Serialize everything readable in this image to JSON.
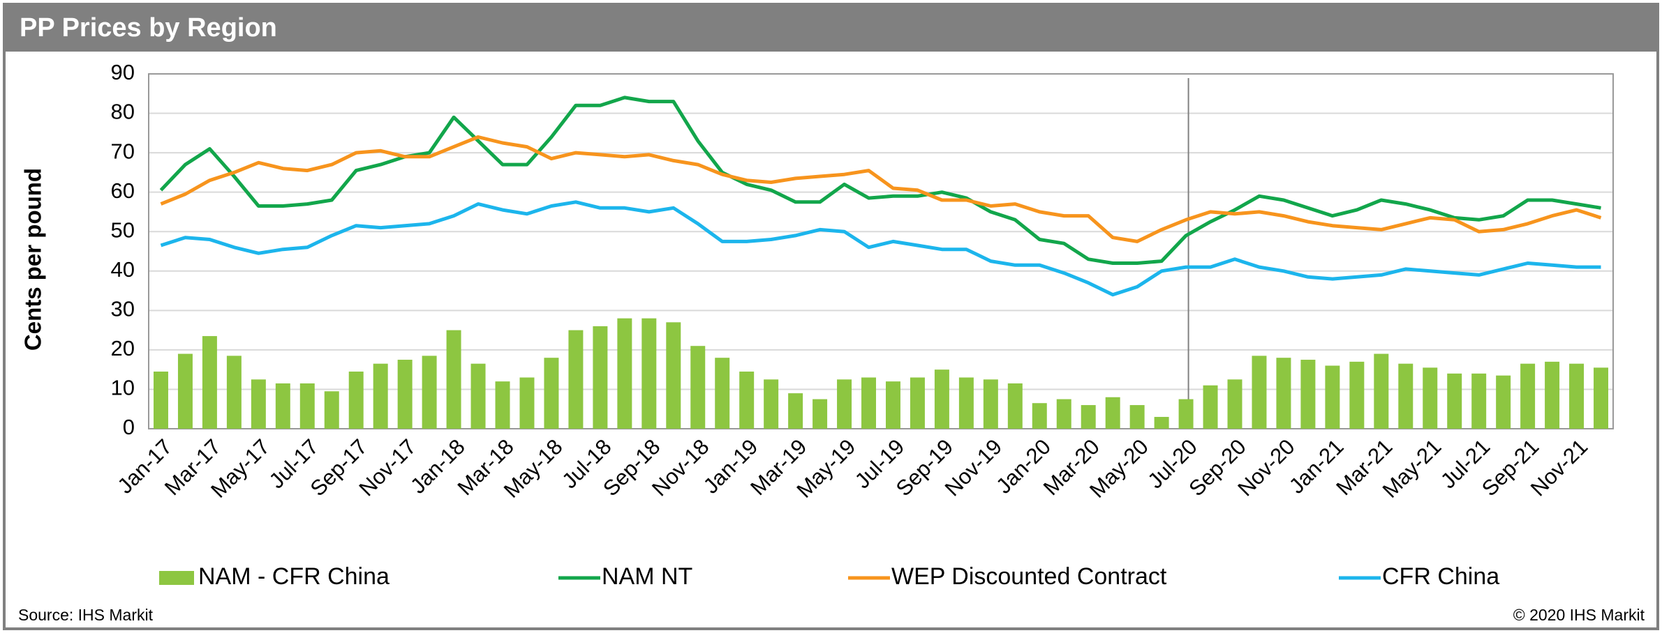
{
  "chart_data": {
    "type": "combo",
    "title": "PP Prices by Region",
    "ylabel": "Cents per pound",
    "source": "Source: IHS Markit",
    "copyright": "© 2020 IHS Markit",
    "categories": [
      "Jan-17",
      null,
      "Mar-17",
      null,
      "May-17",
      null,
      "Jul-17",
      null,
      "Sep-17",
      null,
      "Nov-17",
      null,
      "Jan-18",
      null,
      "Mar-18",
      null,
      "May-18",
      null,
      "Jul-18",
      null,
      "Sep-18",
      null,
      "Nov-18",
      null,
      "Jan-19",
      null,
      "Mar-19",
      null,
      "May-19",
      null,
      "Jul-19",
      null,
      "Sep-19",
      null,
      "Nov-19",
      null,
      "Jan-20",
      null,
      "Mar-20",
      null,
      "May-20",
      null,
      "Jul-20",
      null,
      "Sep-20",
      null,
      "Nov-20",
      null,
      "Jan-21",
      null,
      "Mar-21",
      null,
      "May-21",
      null,
      "Jul-21",
      null,
      "Sep-21",
      null,
      "Nov-21",
      null
    ],
    "ylim": [
      0,
      90
    ],
    "yticks": [
      0,
      10,
      20,
      30,
      40,
      50,
      60,
      70,
      80,
      90
    ],
    "grid": true,
    "series": [
      {
        "name": "NAM - CFR China",
        "type": "bar",
        "color": "#8dc641",
        "values": [
          14.5,
          19,
          23.5,
          18.5,
          12.5,
          11.5,
          11.5,
          9.5,
          14.5,
          16.5,
          17.5,
          18.5,
          25,
          16.5,
          12,
          13,
          18,
          25,
          26,
          28,
          28,
          27,
          21,
          18,
          14.5,
          12.5,
          9,
          7.5,
          12.5,
          13,
          12,
          13,
          15,
          13,
          12.5,
          11.5,
          6.5,
          7.5,
          6,
          8,
          6,
          3,
          7.5,
          11,
          12.5,
          18.5,
          18,
          17.5,
          16,
          17,
          19,
          16.5,
          15.5,
          14,
          14,
          13.5,
          16.5,
          17,
          16.5,
          15.5
        ]
      },
      {
        "name": "NAM NT",
        "type": "line",
        "color": "#12a64b",
        "values": [
          60.5,
          67,
          71,
          64,
          56.5,
          56.5,
          57,
          58,
          65.5,
          67,
          69,
          70,
          79,
          73,
          67,
          67,
          74,
          82,
          82,
          84,
          83,
          83,
          73,
          65,
          62,
          60.5,
          57.5,
          57.5,
          62,
          58.5,
          59,
          59,
          60,
          58.5,
          55,
          53,
          48,
          47,
          43,
          42,
          42,
          42.5,
          49,
          52.5,
          55.5,
          59,
          58,
          56,
          54,
          55.5,
          58,
          57,
          55.5,
          53.5,
          53,
          54,
          58,
          58,
          57,
          56
        ]
      },
      {
        "name": "WEP Discounted Contract",
        "type": "line",
        "color": "#f7941d",
        "values": [
          57,
          59.5,
          63,
          65,
          67.5,
          66,
          65.5,
          67,
          70,
          70.5,
          69,
          69,
          71.5,
          74,
          72.5,
          71.5,
          68.5,
          70,
          69.5,
          69,
          69.5,
          68,
          67,
          64.5,
          63,
          62.5,
          63.5,
          64,
          64.5,
          65.5,
          61,
          60.5,
          58,
          58,
          56.5,
          57,
          55,
          54,
          54,
          48.5,
          47.5,
          50.5,
          53,
          55,
          54.5,
          55,
          54,
          52.5,
          51.5,
          51,
          50.5,
          52,
          53.5,
          53,
          50,
          50.5,
          52,
          54,
          55.5,
          53.5
        ]
      },
      {
        "name": "CFR China",
        "type": "line",
        "color": "#1cb5ec",
        "values": [
          46.5,
          48.5,
          48,
          46,
          44.5,
          45.5,
          46,
          49,
          51.5,
          51,
          51.5,
          52,
          54,
          57,
          55.5,
          54.5,
          56.5,
          57.5,
          56,
          56,
          55,
          56,
          52,
          47.5,
          47.5,
          48,
          49,
          50.5,
          50,
          46,
          47.5,
          46.5,
          45.5,
          45.5,
          42.5,
          41.5,
          41.5,
          39.5,
          37,
          34,
          36,
          40,
          41,
          41,
          43,
          41,
          40,
          38.5,
          38,
          38.5,
          39,
          40.5,
          40,
          39.5,
          39,
          40.5,
          42,
          41.5,
          41,
          41
        ]
      }
    ]
  }
}
